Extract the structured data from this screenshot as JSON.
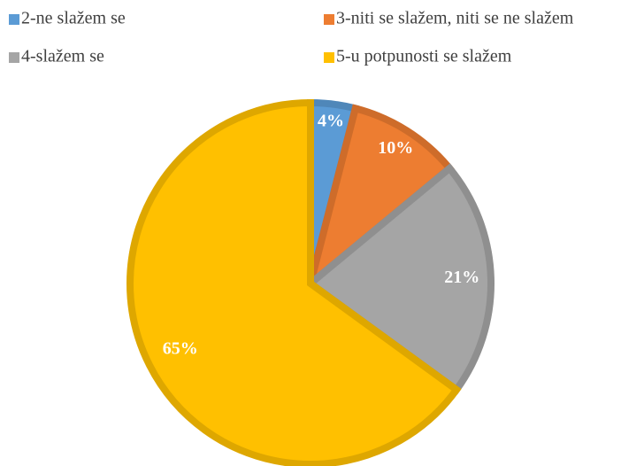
{
  "chart_data": {
    "type": "pie",
    "categories": [
      "2-ne slažem se",
      "3-niti se slažem, niti se ne slažem",
      "4-slažem se",
      "5-u potpunosti se slažem"
    ],
    "values": [
      4,
      10,
      21,
      65
    ],
    "value_labels": [
      "4%",
      "10%",
      "21%",
      "65%"
    ],
    "colors": [
      "#5b9bd5",
      "#ed7d31",
      "#a5a5a5",
      "#ffc000"
    ],
    "legend": "top"
  }
}
